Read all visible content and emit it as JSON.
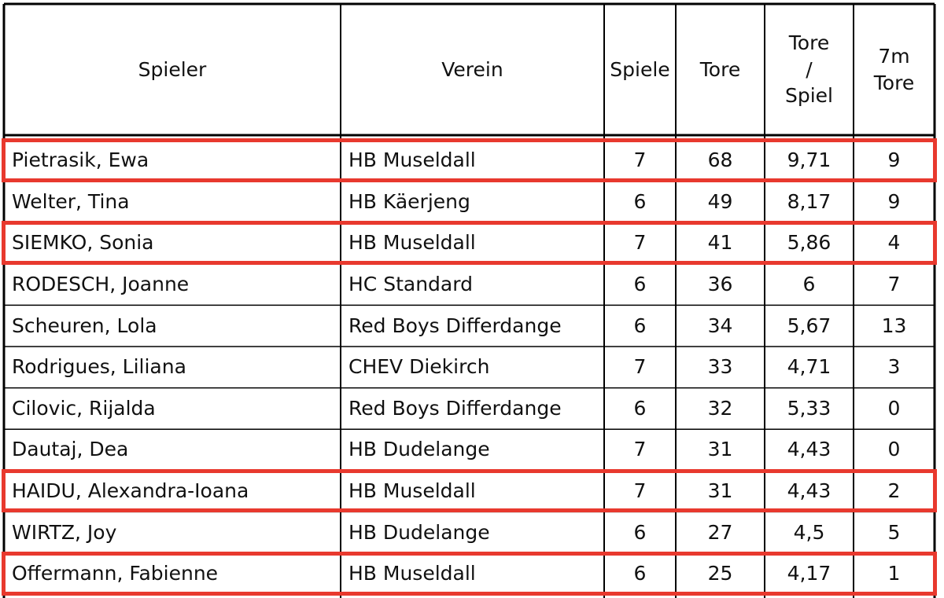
{
  "columns": [
    "Spieler",
    "Verein",
    "Spiele",
    "Tore",
    "Tore\n/\nSpiel",
    "7m\nTore"
  ],
  "rows": [
    {
      "spieler": "Pietrasik, Ewa",
      "verein": "HB Museldall",
      "spiele": "7",
      "tore": "68",
      "tore_spiel": "9,71",
      "siebenm": "9",
      "highlighted": true
    },
    {
      "spieler": "Welter, Tina",
      "verein": "HB Käerjeng",
      "spiele": "6",
      "tore": "49",
      "tore_spiel": "8,17",
      "siebenm": "9",
      "highlighted": false
    },
    {
      "spieler": "SIEMKO, Sonia",
      "verein": "HB Museldall",
      "spiele": "7",
      "tore": "41",
      "tore_spiel": "5,86",
      "siebenm": "4",
      "highlighted": true
    },
    {
      "spieler": "RODESCH, Joanne",
      "verein": "HC Standard",
      "spiele": "6",
      "tore": "36",
      "tore_spiel": "6",
      "siebenm": "7",
      "highlighted": false
    },
    {
      "spieler": "Scheuren, Lola",
      "verein": "Red Boys Differdange",
      "spiele": "6",
      "tore": "34",
      "tore_spiel": "5,67",
      "siebenm": "13",
      "highlighted": false
    },
    {
      "spieler": "Rodrigues, Liliana",
      "verein": "CHEV Diekirch",
      "spiele": "7",
      "tore": "33",
      "tore_spiel": "4,71",
      "siebenm": "3",
      "highlighted": false
    },
    {
      "spieler": "Cilovic, Rijalda",
      "verein": "Red Boys Differdange",
      "spiele": "6",
      "tore": "32",
      "tore_spiel": "5,33",
      "siebenm": "0",
      "highlighted": false
    },
    {
      "spieler": "Dautaj, Dea",
      "verein": "HB Dudelange",
      "spiele": "7",
      "tore": "31",
      "tore_spiel": "4,43",
      "siebenm": "0",
      "highlighted": false
    },
    {
      "spieler": "HAIDU, Alexandra-Ioana",
      "verein": "HB Museldall",
      "spiele": "7",
      "tore": "31",
      "tore_spiel": "4,43",
      "siebenm": "2",
      "highlighted": true
    },
    {
      "spieler": "WIRTZ, Joy",
      "verein": "HB Dudelange",
      "spiele": "6",
      "tore": "27",
      "tore_spiel": "4,5",
      "siebenm": "5",
      "highlighted": false
    },
    {
      "spieler": "Offermann, Fabienne",
      "verein": "HB Museldall",
      "spiele": "6",
      "tore": "25",
      "tore_spiel": "4,17",
      "siebenm": "1",
      "highlighted": true
    }
  ],
  "colors": {
    "grid_line": "#000000",
    "highlight": "#e8392e"
  }
}
